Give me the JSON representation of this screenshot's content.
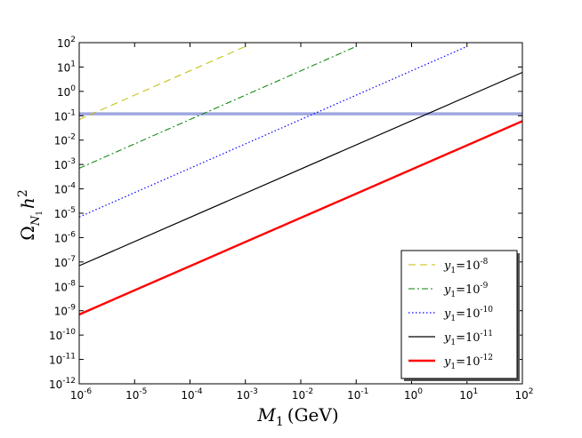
{
  "chart_data": {
    "type": "line",
    "xscale": "log",
    "yscale": "log",
    "xlim": [
      1e-06,
      100
    ],
    "ylim": [
      1e-12,
      100
    ],
    "xlabel": {
      "base": "M",
      "sub": "1",
      "unit": "(GeV)"
    },
    "ylabel": {
      "omega": "Ω",
      "sub_n": "N",
      "sub_1": "1",
      "h": "h",
      "sup": "2"
    },
    "x_ticks": [
      {
        "value": 1e-06,
        "base": "10",
        "exp": "-6"
      },
      {
        "value": 1e-05,
        "base": "10",
        "exp": "-5"
      },
      {
        "value": 0.0001,
        "base": "10",
        "exp": "-4"
      },
      {
        "value": 0.001,
        "base": "10",
        "exp": "-3"
      },
      {
        "value": 0.01,
        "base": "10",
        "exp": "-2"
      },
      {
        "value": 0.1,
        "base": "10",
        "exp": "-1"
      },
      {
        "value": 1,
        "base": "10",
        "exp": "0"
      },
      {
        "value": 10,
        "base": "10",
        "exp": "1"
      },
      {
        "value": 100,
        "base": "10",
        "exp": "2"
      }
    ],
    "y_ticks": [
      {
        "value": 1e-12,
        "base": "10",
        "exp": "-12"
      },
      {
        "value": 1e-11,
        "base": "10",
        "exp": "-11"
      },
      {
        "value": 1e-10,
        "base": "10",
        "exp": "-10"
      },
      {
        "value": 1e-09,
        "base": "10",
        "exp": "-9"
      },
      {
        "value": 1e-08,
        "base": "10",
        "exp": "-8"
      },
      {
        "value": 1e-07,
        "base": "10",
        "exp": "-7"
      },
      {
        "value": 1e-06,
        "base": "10",
        "exp": "-6"
      },
      {
        "value": 1e-05,
        "base": "10",
        "exp": "-5"
      },
      {
        "value": 0.0001,
        "base": "10",
        "exp": "-4"
      },
      {
        "value": 0.001,
        "base": "10",
        "exp": "-3"
      },
      {
        "value": 0.01,
        "base": "10",
        "exp": "-2"
      },
      {
        "value": 0.1,
        "base": "10",
        "exp": "-1"
      },
      {
        "value": 1,
        "base": "10",
        "exp": "0"
      },
      {
        "value": 10,
        "base": "10",
        "exp": "1"
      },
      {
        "value": 100,
        "base": "10",
        "exp": "2"
      }
    ],
    "series": [
      {
        "name": "y1 = 10^-8",
        "label_base": "y",
        "label_sub": "1",
        "label_eq": "=10",
        "label_exp": "-8",
        "color": "#bfbf00",
        "style": "dashed",
        "points": [
          [
            1e-06,
            0.07
          ],
          [
            0.001,
            70
          ]
        ]
      },
      {
        "name": "y1 = 10^-9",
        "label_base": "y",
        "label_sub": "1",
        "label_eq": "=10",
        "label_exp": "-9",
        "color": "#008000",
        "style": "dashdot",
        "points": [
          [
            1e-06,
            0.0007
          ],
          [
            0.1,
            70
          ]
        ]
      },
      {
        "name": "y1 = 10^-10",
        "label_base": "y",
        "label_sub": "1",
        "label_eq": "=10",
        "label_exp": "-10",
        "color": "#0000ff",
        "style": "dotted",
        "points": [
          [
            1e-06,
            7e-06
          ],
          [
            10,
            70
          ]
        ]
      },
      {
        "name": "y1 = 10^-11",
        "label_base": "y",
        "label_sub": "1",
        "label_eq": "=10",
        "label_exp": "-11",
        "color": "#000000",
        "style": "solid",
        "points": [
          [
            1e-06,
            7e-08
          ],
          [
            100,
            6
          ]
        ]
      },
      {
        "name": "y1 = 10^-12",
        "label_base": "y",
        "label_sub": "1",
        "label_eq": "=10",
        "label_exp": "-12",
        "color": "#ff0000",
        "style": "solid-thick",
        "points": [
          [
            1e-06,
            7e-10
          ],
          [
            100,
            0.06
          ]
        ]
      }
    ],
    "reference_lines": [
      {
        "name": "relic-density-band",
        "y": 0.12,
        "color": "#a0a8e0"
      }
    ],
    "legend_position": "lower-right"
  }
}
